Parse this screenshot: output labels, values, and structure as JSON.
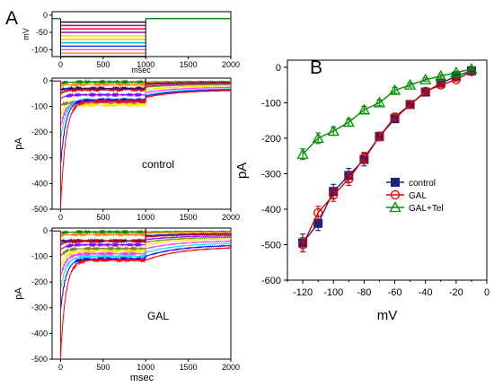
{
  "chart_data": [
    {
      "panel": "A",
      "type": "line",
      "subpanel": "voltage-protocol",
      "xlabel": "msec",
      "ylabel": "mV",
      "xlim": [
        -100,
        2000
      ],
      "ylim": [
        -120,
        10
      ],
      "xticks": [
        0,
        500,
        1000,
        1500,
        2000
      ],
      "yticks": [
        0,
        -50,
        -100
      ],
      "holding_potential": -10,
      "step_window": [
        0,
        1000
      ],
      "step_levels": [
        -20,
        -30,
        -40,
        -50,
        -60,
        -70,
        -80,
        -90,
        -100,
        -110,
        -120
      ],
      "step_colors": [
        "#000000",
        "#c0007a",
        "#e00000",
        "#8000a0",
        "#ffd000",
        "#d0d000",
        "#00c0c0",
        "#0030ff",
        "#ff40ff",
        "#ff8000",
        "#000000"
      ],
      "baseline_color": "#008000"
    },
    {
      "panel": "A",
      "type": "line",
      "subpanel": "current-traces",
      "label": "control",
      "xlabel": "",
      "ylabel": "pA",
      "xlim": [
        -100,
        2000
      ],
      "ylim": [
        -500,
        10
      ],
      "xticks": [
        0,
        500,
        1000,
        1500,
        2000
      ],
      "yticks": [
        0,
        -100,
        -200,
        -300,
        -400,
        -500
      ],
      "stim_marker_x": 1000,
      "stim_marker_color": "#c00000",
      "series": [
        {
          "color": "#ff0000",
          "peak": -490,
          "steady": -80,
          "tail": -65
        },
        {
          "color": "#0000ff",
          "peak": -330,
          "steady": -75,
          "tail": -60
        },
        {
          "color": "#00e5ff",
          "peak": -230,
          "steady": -75,
          "tail": -55
        },
        {
          "color": "#ff33ff",
          "peak": -180,
          "steady": -80,
          "tail": -45
        },
        {
          "color": "#ffe600",
          "peak": -130,
          "steady": -95,
          "tail": -35
        },
        {
          "color": "#808000",
          "peak": -95,
          "steady": -85,
          "tail": -25
        },
        {
          "color": "#8000ff",
          "peak": -70,
          "steady": -55,
          "tail": -22
        },
        {
          "color": "#c00000",
          "peak": -50,
          "steady": -35,
          "tail": -15
        },
        {
          "color": "#0000a0",
          "peak": -35,
          "steady": -30,
          "tail": -12
        },
        {
          "color": "#ff8800",
          "peak": -20,
          "steady": -15,
          "tail": -8
        },
        {
          "color": "#008000",
          "peak": -10,
          "steady": -5,
          "tail": -5
        }
      ]
    },
    {
      "panel": "A",
      "type": "line",
      "subpanel": "current-traces",
      "label": "GAL",
      "xlabel": "msec",
      "ylabel": "pA",
      "xlim": [
        -100,
        2000
      ],
      "ylim": [
        -500,
        10
      ],
      "xticks": [
        0,
        500,
        1000,
        1500,
        2000
      ],
      "yticks": [
        0,
        -100,
        -200,
        -300,
        -400,
        -500
      ],
      "stim_marker_x": 1000,
      "stim_marker_color": "#c00000",
      "series": [
        {
          "color": "#ff0000",
          "peak": -490,
          "steady": -115,
          "tail": -115
        },
        {
          "color": "#0000ff",
          "peak": -310,
          "steady": -110,
          "tail": -100
        },
        {
          "color": "#00e5ff",
          "peak": -230,
          "steady": -100,
          "tail": -85
        },
        {
          "color": "#ff33ff",
          "peak": -180,
          "steady": -90,
          "tail": -70
        },
        {
          "color": "#ffe600",
          "peak": -140,
          "steady": -80,
          "tail": -55
        },
        {
          "color": "#808000",
          "peak": -100,
          "steady": -70,
          "tail": -45
        },
        {
          "color": "#8000ff",
          "peak": -75,
          "steady": -55,
          "tail": -35
        },
        {
          "color": "#c00000",
          "peak": -55,
          "steady": -40,
          "tail": -25
        },
        {
          "color": "#0000a0",
          "peak": -40,
          "steady": -40,
          "tail": -20
        },
        {
          "color": "#ff8800",
          "peak": -20,
          "steady": -15,
          "tail": -10
        },
        {
          "color": "#008000",
          "peak": -10,
          "steady": -5,
          "tail": -5
        }
      ]
    },
    {
      "panel": "B",
      "type": "line",
      "xlabel": "mV",
      "ylabel": "pA",
      "xlim": [
        -130,
        0
      ],
      "ylim": [
        -600,
        20
      ],
      "xticks": [
        -120,
        -100,
        -80,
        -60,
        -40,
        -20,
        0
      ],
      "xticklabels": [
        "-120",
        "-100",
        "-80",
        "-60",
        "-40",
        "-20",
        "0"
      ],
      "yticks": [
        0,
        -100,
        -200,
        -300,
        -400,
        -500,
        -600
      ],
      "yticklabels": [
        "0",
        "-100",
        "-200",
        "-300",
        "-400",
        "-500",
        "-600"
      ],
      "legend_position": "lower-right",
      "x": [
        -120,
        -110,
        -100,
        -90,
        -80,
        -70,
        -60,
        -50,
        -40,
        -30,
        -20,
        -10
      ],
      "series": [
        {
          "name": "control",
          "marker": "filled-square",
          "color": "#1a237e",
          "values": [
            -495,
            -440,
            -350,
            -305,
            -260,
            -195,
            -145,
            -105,
            -70,
            -45,
            -25,
            -10
          ],
          "errors": [
            25,
            20,
            20,
            20,
            18,
            12,
            10,
            10,
            8,
            6,
            5,
            4
          ]
        },
        {
          "name": "GAL",
          "marker": "open-circle",
          "color": "#e00000",
          "values": [
            -500,
            -410,
            -360,
            -315,
            -255,
            -195,
            -140,
            -105,
            -68,
            -50,
            -35,
            -12
          ],
          "errors": [
            20,
            18,
            18,
            18,
            15,
            12,
            10,
            8,
            6,
            5,
            5,
            4
          ]
        },
        {
          "name": "GAL+Tel",
          "marker": "open-triangle",
          "color": "#009000",
          "values": [
            -245,
            -200,
            -180,
            -155,
            -120,
            -100,
            -65,
            -50,
            -35,
            -25,
            -15,
            -5
          ],
          "errors": [
            15,
            15,
            12,
            10,
            10,
            8,
            8,
            6,
            5,
            5,
            4,
            3
          ]
        }
      ]
    }
  ],
  "labels": {
    "panel_a": "A",
    "panel_b": "B",
    "condition_1": "control",
    "condition_2": "GAL"
  },
  "axes": {
    "protocol": {
      "ylabel": "mV",
      "xlabel": "msec",
      "xticks": [
        "0",
        "500",
        "1000",
        "1500",
        "2000"
      ],
      "yticks": [
        "0",
        "-50",
        "-100"
      ]
    },
    "control": {
      "ylabel": "pA",
      "xticks": [
        "0",
        "500",
        "1000",
        "1500",
        "2000"
      ],
      "yticks": [
        "0",
        "-100",
        "-200",
        "-300",
        "-400",
        "-500"
      ]
    },
    "gal": {
      "ylabel": "pA",
      "xlabel": "msec",
      "xticks": [
        "0",
        "500",
        "1000",
        "1500",
        "2000"
      ],
      "yticks": [
        "0",
        "-100",
        "-200",
        "-300",
        "-400",
        "-500"
      ]
    },
    "iv": {
      "ylabel": "pA",
      "xlabel": "mV"
    }
  }
}
